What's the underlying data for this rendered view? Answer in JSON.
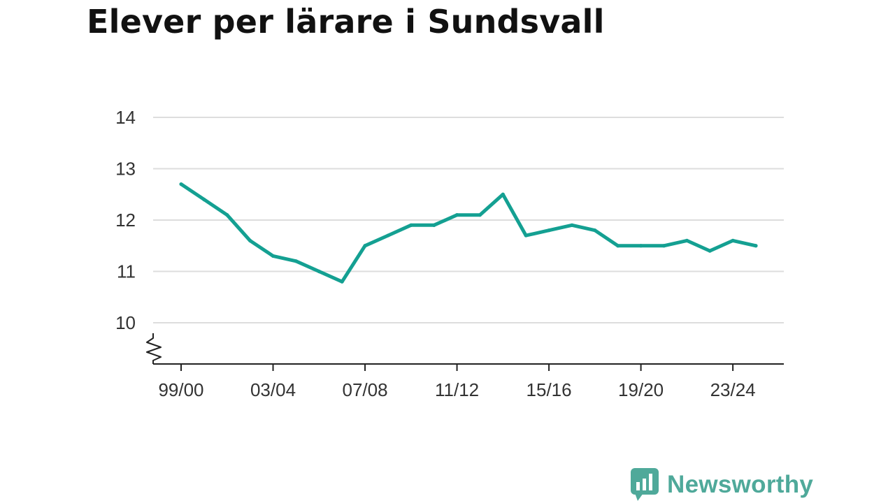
{
  "title": "Elever per lärare i Sundsvall",
  "brand": {
    "name": "Newsworthy",
    "color": "#4fa99a",
    "icon": "newsworthy-logo-icon"
  },
  "chart_data": {
    "type": "line",
    "title": "Elever per lärare i Sundsvall",
    "xlabel": "",
    "ylabel": "",
    "x": [
      "99/00",
      "00/01",
      "01/02",
      "02/03",
      "03/04",
      "04/05",
      "05/06",
      "06/07",
      "07/08",
      "08/09",
      "09/10",
      "10/11",
      "11/12",
      "12/13",
      "13/14",
      "14/15",
      "15/16",
      "16/17",
      "17/18",
      "18/19",
      "19/20",
      "20/21",
      "21/22",
      "22/23",
      "23/24",
      "24/25"
    ],
    "x_tick_labels": [
      "99/00",
      "03/04",
      "07/08",
      "11/12",
      "15/16",
      "19/20",
      "23/24"
    ],
    "y_tick_labels": [
      "10",
      "11",
      "12",
      "13",
      "14"
    ],
    "series": [
      {
        "values": [
          12.7,
          12.4,
          12.1,
          11.6,
          11.3,
          11.2,
          11.0,
          10.8,
          11.5,
          11.7,
          11.9,
          11.9,
          12.1,
          12.1,
          12.5,
          11.7,
          11.8,
          11.9,
          11.8,
          11.5,
          11.5,
          11.5,
          11.6,
          11.4,
          11.6,
          11.5
        ]
      }
    ],
    "ylim": [
      9.6,
      14
    ],
    "y_axis_break": true,
    "grid": true,
    "line_color": "#14a092",
    "grid_color": "#dddddd"
  }
}
